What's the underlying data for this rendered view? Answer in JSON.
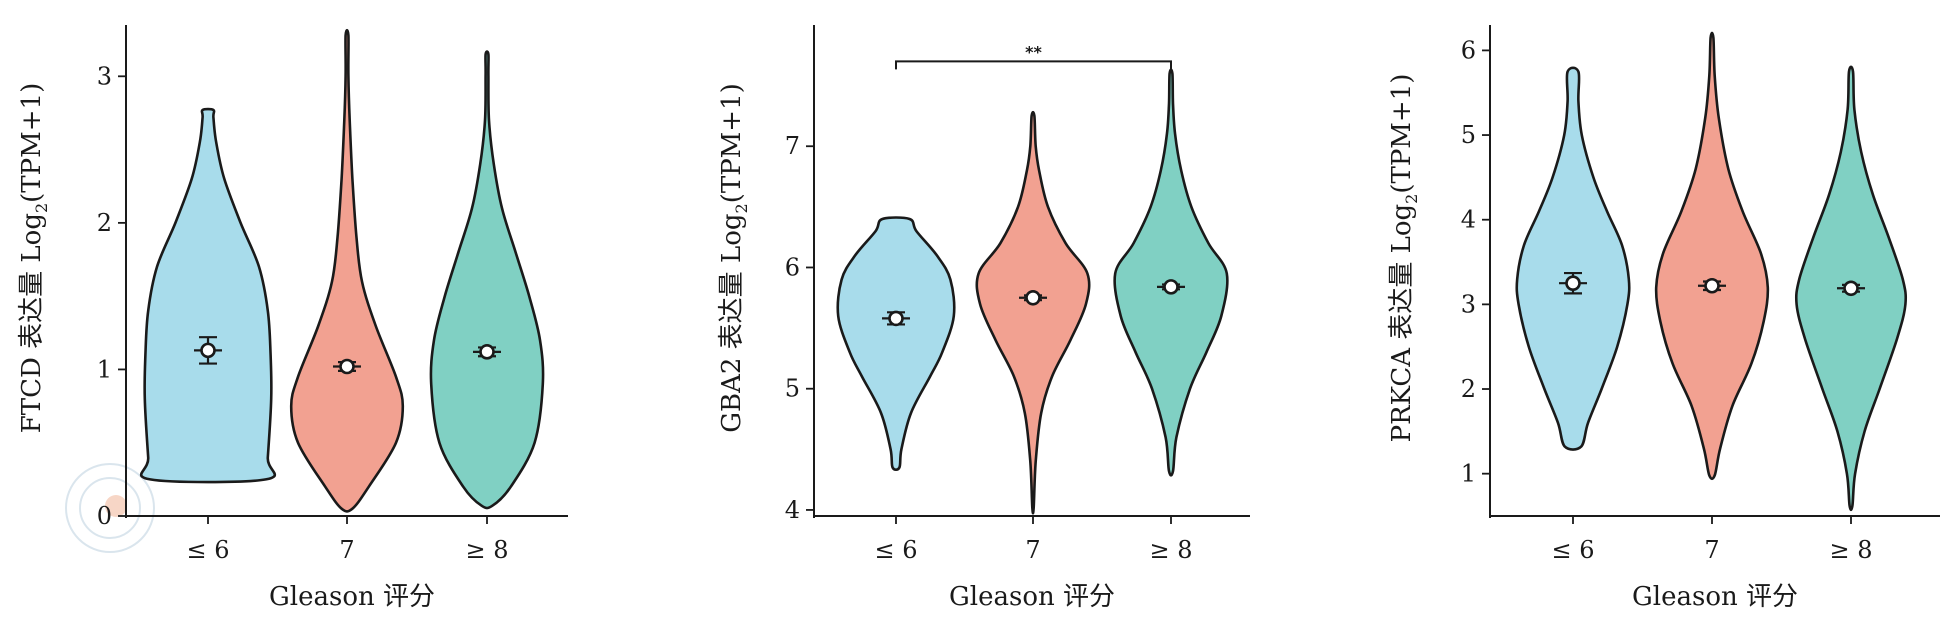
{
  "chart_data": [
    {
      "type": "violin",
      "ylabel": "FTCD 表达量 Log",
      "ylabel_sub": "2",
      "ylabel_tail": "(TPM+1)",
      "xlabel": "Gleason 评分",
      "categories": [
        "≤ 6",
        "7",
        "≥ 8"
      ],
      "yticks": [
        0,
        1,
        2,
        3
      ],
      "ylim": [
        0,
        3.35
      ],
      "colors": [
        "#a8dceb",
        "#f2a191",
        "#80d0c3"
      ],
      "series": [
        {
          "min": 0.25,
          "max": 2.77,
          "mean": 1.13,
          "ci": [
            1.04,
            1.22
          ],
          "profile": [
            [
              0.25,
              0.85
            ],
            [
              0.4,
              0.88
            ],
            [
              0.8,
              0.93
            ],
            [
              1.1,
              0.92
            ],
            [
              1.4,
              0.88
            ],
            [
              1.7,
              0.75
            ],
            [
              2.0,
              0.48
            ],
            [
              2.3,
              0.24
            ],
            [
              2.55,
              0.12
            ],
            [
              2.72,
              0.08
            ],
            [
              2.77,
              0.08
            ]
          ]
        },
        {
          "min": 0.05,
          "max": 3.28,
          "mean": 1.02,
          "ci": [
            0.99,
            1.05
          ],
          "profile": [
            [
              0.05,
              0.08
            ],
            [
              0.2,
              0.32
            ],
            [
              0.5,
              0.72
            ],
            [
              0.75,
              0.82
            ],
            [
              0.95,
              0.72
            ],
            [
              1.3,
              0.42
            ],
            [
              1.6,
              0.22
            ],
            [
              1.9,
              0.14
            ],
            [
              2.3,
              0.08
            ],
            [
              2.7,
              0.04
            ],
            [
              3.0,
              0.02
            ],
            [
              3.28,
              0.02
            ]
          ]
        },
        {
          "min": 0.07,
          "max": 3.15,
          "mean": 1.12,
          "ci": [
            1.09,
            1.15
          ],
          "profile": [
            [
              0.07,
              0.08
            ],
            [
              0.2,
              0.35
            ],
            [
              0.5,
              0.7
            ],
            [
              0.9,
              0.82
            ],
            [
              1.2,
              0.78
            ],
            [
              1.5,
              0.62
            ],
            [
              1.8,
              0.42
            ],
            [
              2.1,
              0.22
            ],
            [
              2.4,
              0.1
            ],
            [
              2.7,
              0.03
            ],
            [
              3.0,
              0.02
            ],
            [
              3.15,
              0.02
            ]
          ]
        }
      ]
    },
    {
      "type": "violin",
      "ylabel": "GBA2 表达量 Log",
      "ylabel_sub": "2",
      "ylabel_tail": "(TPM+1)",
      "xlabel": "Gleason 评分",
      "categories": [
        "≤ 6",
        "7",
        "≥ 8"
      ],
      "yticks": [
        4,
        5,
        6,
        7
      ],
      "ylim": [
        3.95,
        8.0
      ],
      "colors": [
        "#a8dceb",
        "#f2a191",
        "#80d0c3"
      ],
      "significance": {
        "from": 0,
        "to": 2,
        "y": 7.7,
        "label": "**"
      },
      "series": [
        {
          "min": 4.35,
          "max": 6.4,
          "mean": 5.58,
          "ci": [
            5.53,
            5.63
          ],
          "profile": [
            [
              4.35,
              0.05
            ],
            [
              4.5,
              0.08
            ],
            [
              4.8,
              0.22
            ],
            [
              5.1,
              0.5
            ],
            [
              5.3,
              0.68
            ],
            [
              5.6,
              0.85
            ],
            [
              5.9,
              0.8
            ],
            [
              6.1,
              0.6
            ],
            [
              6.3,
              0.3
            ],
            [
              6.4,
              0.2
            ]
          ]
        },
        {
          "min": 4.02,
          "max": 7.25,
          "mean": 5.75,
          "ci": [
            5.73,
            5.77
          ],
          "profile": [
            [
              4.02,
              0.01
            ],
            [
              4.4,
              0.04
            ],
            [
              4.8,
              0.12
            ],
            [
              5.1,
              0.28
            ],
            [
              5.4,
              0.55
            ],
            [
              5.7,
              0.78
            ],
            [
              5.95,
              0.8
            ],
            [
              6.2,
              0.48
            ],
            [
              6.5,
              0.22
            ],
            [
              6.8,
              0.09
            ],
            [
              7.0,
              0.04
            ],
            [
              7.25,
              0.02
            ]
          ]
        },
        {
          "min": 4.32,
          "max": 7.6,
          "mean": 5.84,
          "ci": [
            5.82,
            5.86
          ],
          "profile": [
            [
              4.32,
              0.03
            ],
            [
              4.6,
              0.08
            ],
            [
              5.0,
              0.28
            ],
            [
              5.3,
              0.52
            ],
            [
              5.6,
              0.74
            ],
            [
              5.95,
              0.82
            ],
            [
              6.2,
              0.55
            ],
            [
              6.5,
              0.3
            ],
            [
              6.8,
              0.15
            ],
            [
              7.1,
              0.06
            ],
            [
              7.35,
              0.03
            ],
            [
              7.6,
              0.02
            ]
          ]
        }
      ]
    },
    {
      "type": "violin",
      "ylabel": "PRKCA 表达量 Log",
      "ylabel_sub": "2",
      "ylabel_tail": "(TPM+1)",
      "xlabel": "Gleason 评分",
      "categories": [
        "≤ 6",
        "7",
        "≥ 8"
      ],
      "yticks": [
        1,
        2,
        3,
        4,
        5,
        6
      ],
      "ylim": [
        0.5,
        6.3
      ],
      "colors": [
        "#a8dceb",
        "#f2a191",
        "#80d0c3"
      ],
      "series": [
        {
          "min": 1.32,
          "max": 5.75,
          "mean": 3.25,
          "ci": [
            3.13,
            3.37
          ],
          "profile": [
            [
              1.32,
              0.12
            ],
            [
              1.6,
              0.22
            ],
            [
              2.0,
              0.42
            ],
            [
              2.5,
              0.65
            ],
            [
              3.0,
              0.8
            ],
            [
              3.3,
              0.82
            ],
            [
              3.7,
              0.72
            ],
            [
              4.1,
              0.5
            ],
            [
              4.5,
              0.3
            ],
            [
              5.0,
              0.13
            ],
            [
              5.4,
              0.08
            ],
            [
              5.75,
              0.08
            ]
          ]
        },
        {
          "min": 0.98,
          "max": 6.15,
          "mean": 3.22,
          "ci": [
            3.17,
            3.27
          ],
          "profile": [
            [
              0.98,
              0.04
            ],
            [
              1.3,
              0.12
            ],
            [
              1.8,
              0.3
            ],
            [
              2.3,
              0.58
            ],
            [
              2.8,
              0.76
            ],
            [
              3.2,
              0.82
            ],
            [
              3.6,
              0.72
            ],
            [
              4.1,
              0.45
            ],
            [
              4.6,
              0.24
            ],
            [
              5.2,
              0.1
            ],
            [
              5.7,
              0.04
            ],
            [
              6.15,
              0.02
            ]
          ]
        },
        {
          "min": 0.62,
          "max": 5.75,
          "mean": 3.19,
          "ci": [
            3.15,
            3.23
          ],
          "profile": [
            [
              0.62,
              0.02
            ],
            [
              1.0,
              0.06
            ],
            [
              1.5,
              0.2
            ],
            [
              2.0,
              0.42
            ],
            [
              2.6,
              0.68
            ],
            [
              3.0,
              0.8
            ],
            [
              3.3,
              0.76
            ],
            [
              3.8,
              0.55
            ],
            [
              4.3,
              0.32
            ],
            [
              4.8,
              0.15
            ],
            [
              5.3,
              0.05
            ],
            [
              5.75,
              0.03
            ]
          ]
        }
      ]
    }
  ]
}
